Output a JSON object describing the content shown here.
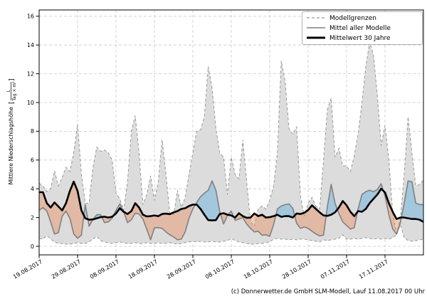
{
  "footer": {
    "credit": "(c) Donnerwetter.de GmbH SLM-Modell, Lauf 11.08.2017 00 Uhr"
  },
  "ylabel": {
    "prefix": "Mittlere Niederschlagshöhe",
    "bracket_open": "[",
    "numerator": "L",
    "denominator": "Tag × m²",
    "bracket_close": "]"
  },
  "chart_data": {
    "type": "line",
    "title": "",
    "xlabel": "",
    "ylabel": "Mittlere Niederschlagshöhe [L/(Tag × m²)]",
    "grid": true,
    "legend_position": "top-right",
    "ylim": [
      0,
      16
    ],
    "yticks": [
      0,
      2,
      4,
      6,
      8,
      10,
      12,
      14,
      16
    ],
    "x_tick_days": [
      0,
      10,
      20,
      30,
      40,
      50,
      60,
      70,
      80,
      90
    ],
    "x_tick_labels": [
      "19.08.2017",
      "29.08.2017",
      "08.09.2017",
      "18.09.2017",
      "28.09.2017",
      "08.10.2017",
      "18.10.2017",
      "28.10.2017",
      "07.11.2017",
      "17.11.2017"
    ],
    "x_range_days": [
      0,
      100
    ],
    "legend": [
      {
        "label": "Modellgrenzen",
        "style": "dashed-gray"
      },
      {
        "label": "Mittel aller Modelle",
        "style": "solid-gray"
      },
      {
        "label": "Mittelwert 30 Jahre",
        "style": "solid-black-thick"
      }
    ],
    "colors": {
      "band": "#dcdcdc",
      "band_border": "#999999",
      "model_mean": "#808080",
      "mean_30y": "#000000",
      "above_normal": "#7fb9dd",
      "below_normal": "#e89a72",
      "grid": "#c9c9c9"
    },
    "series": [
      {
        "name": "Modellgrenzen (obere Grenze)",
        "style": "dashed-gray",
        "values": [
          4.4,
          4.2,
          3.8,
          4.0,
          5.25,
          4.2,
          4.8,
          5.5,
          5.2,
          6.5,
          8.5,
          5.0,
          3.0,
          3.0,
          5.5,
          6.9,
          6.6,
          6.7,
          6.5,
          6.0,
          3.7,
          3.3,
          2.5,
          4.5,
          8.0,
          9.1,
          6.5,
          2.9,
          3.6,
          4.9,
          3.2,
          4.5,
          7.4,
          5.0,
          2.3,
          2.2,
          3.9,
          2.7,
          3.4,
          5.0,
          6.5,
          8.0,
          8.1,
          9.0,
          12.5,
          11.0,
          8.2,
          6.5,
          6.2,
          3.6,
          6.2,
          5.0,
          4.7,
          7.4,
          4.5,
          1.7,
          1.4,
          2.6,
          2.8,
          2.6,
          3.2,
          4.2,
          6.5,
          12.9,
          11.5,
          8.2,
          7.8,
          8.3,
          3.5,
          2.1,
          3.0,
          3.4,
          2.8,
          2.6,
          6.0,
          9.5,
          10.3,
          6.2,
          6.8,
          5.6,
          5.6,
          5.2,
          6.3,
          7.8,
          10.0,
          12.5,
          14.2,
          13.3,
          10.5,
          7.0,
          8.4,
          6.0,
          2.3,
          0.9,
          1.9,
          5.0,
          9.0,
          6.5,
          4.2,
          4.3,
          4.6
        ]
      },
      {
        "name": "Modellgrenzen (untere Grenze)",
        "style": "dashed-gray",
        "values": [
          0.55,
          0.5,
          0.75,
          0.5,
          0.3,
          0.2,
          0.2,
          0.15,
          0.15,
          0.2,
          0.25,
          0.2,
          0.2,
          0.3,
          0.5,
          0.7,
          0.4,
          0.3,
          0.25,
          0.2,
          0.25,
          0.3,
          0.25,
          0.2,
          0.2,
          0.25,
          0.2,
          0.2,
          0.25,
          0.2,
          0.2,
          0.25,
          0.2,
          0.2,
          0.25,
          0.2,
          0.15,
          0.2,
          0.25,
          0.3,
          0.35,
          0.3,
          0.35,
          0.3,
          0.3,
          0.35,
          0.3,
          0.3,
          0.35,
          0.4,
          0.55,
          0.4,
          0.3,
          0.25,
          0.2,
          0.15,
          0.15,
          0.2,
          0.2,
          0.25,
          0.3,
          0.5,
          0.55,
          0.5,
          0.5,
          0.45,
          0.5,
          0.45,
          0.5,
          0.5,
          0.45,
          0.4,
          0.35,
          0.3,
          0.45,
          0.4,
          0.45,
          0.5,
          0.55,
          0.8,
          0.5,
          0.5,
          0.55,
          0.5,
          0.55,
          0.6,
          0.55,
          0.5,
          0.55,
          0.5,
          0.55,
          0.5,
          0.6,
          0.8,
          1.5,
          0.6,
          0.4,
          0.35,
          0.4,
          0.45,
          0.5
        ]
      },
      {
        "name": "Mittel aller Modelle",
        "style": "solid-gray",
        "values": [
          2.5,
          2.7,
          2.45,
          1.7,
          0.85,
          0.95,
          2.1,
          2.45,
          1.95,
          0.86,
          0.56,
          0.78,
          2.9,
          1.4,
          1.87,
          2.2,
          2.2,
          1.65,
          1.7,
          1.95,
          2.5,
          2.95,
          2.4,
          1.65,
          1.85,
          2.3,
          2.25,
          1.9,
          1.2,
          0.45,
          1.28,
          1.3,
          1.25,
          1.0,
          0.8,
          0.65,
          0.45,
          0.5,
          1.0,
          1.95,
          2.6,
          3.05,
          3.45,
          3.7,
          3.9,
          4.55,
          3.9,
          2.4,
          1.55,
          2.15,
          2.45,
          1.8,
          1.9,
          2.0,
          1.55,
          1.25,
          1.0,
          1.05,
          0.77,
          0.8,
          0.7,
          1.5,
          2.6,
          2.8,
          2.9,
          2.95,
          2.65,
          1.6,
          1.25,
          1.35,
          1.25,
          1.05,
          0.86,
          0.73,
          0.78,
          2.75,
          4.3,
          3.0,
          2.28,
          1.7,
          1.45,
          1.2,
          1.3,
          2.6,
          3.6,
          3.8,
          3.9,
          3.8,
          3.95,
          4.35,
          3.5,
          2.2,
          1.2,
          0.85,
          1.65,
          3.0,
          4.55,
          4.5,
          3.0,
          2.9,
          2.9
        ]
      },
      {
        "name": "Mittelwert 30 Jahre",
        "style": "solid-black-thick",
        "values": [
          3.76,
          3.76,
          3.0,
          2.7,
          3.05,
          2.77,
          2.5,
          3.0,
          3.85,
          4.5,
          3.85,
          2.5,
          1.95,
          1.85,
          1.87,
          1.95,
          2.03,
          2.06,
          2.0,
          2.06,
          2.28,
          2.65,
          2.4,
          2.25,
          2.45,
          3.0,
          2.7,
          2.2,
          2.08,
          2.1,
          2.15,
          2.1,
          2.25,
          2.27,
          2.24,
          2.36,
          2.45,
          2.6,
          2.65,
          2.8,
          2.9,
          2.9,
          2.6,
          2.2,
          1.82,
          1.8,
          1.82,
          2.25,
          2.3,
          2.2,
          2.15,
          2.0,
          2.3,
          2.1,
          1.98,
          2.0,
          2.28,
          2.1,
          2.2,
          2.0,
          2.03,
          2.1,
          2.2,
          2.05,
          2.1,
          2.1,
          2.0,
          2.28,
          2.25,
          2.33,
          2.52,
          2.85,
          2.6,
          2.36,
          2.15,
          2.12,
          2.2,
          2.36,
          2.7,
          3.15,
          2.85,
          2.4,
          2.1,
          2.45,
          2.4,
          2.6,
          3.0,
          3.3,
          3.6,
          4.0,
          3.75,
          3.0,
          2.4,
          1.9,
          2.0,
          2.0,
          1.95,
          1.9,
          1.9,
          1.85,
          1.7
        ]
      }
    ]
  }
}
